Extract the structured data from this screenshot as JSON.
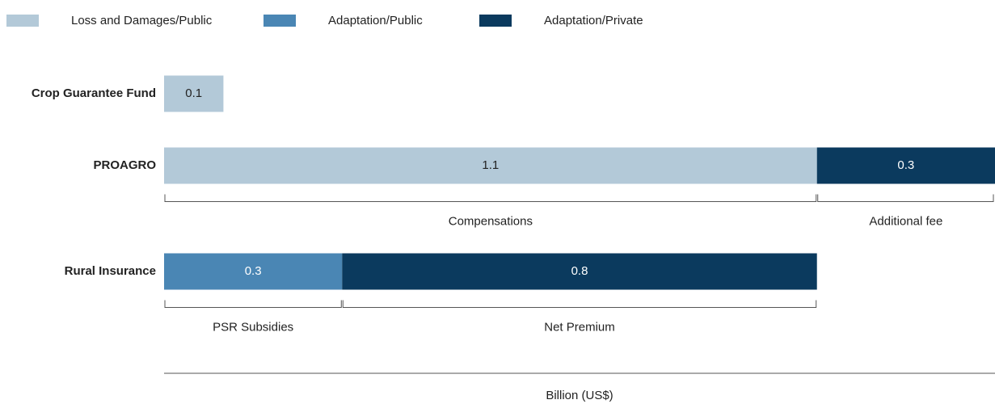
{
  "chart_data": {
    "type": "stacked_barh",
    "categories": [
      "Crop Guarantee Fund",
      "PROAGRO",
      "Rural Insurance"
    ],
    "series": [
      {
        "name": "Loss and Damages/Public",
        "color": "#b3c9d8",
        "values": [
          0.1,
          1.1,
          null
        ],
        "segment_labels": [
          null,
          "Compensations",
          null
        ]
      },
      {
        "name": "Adaptation/Public",
        "color": "#4a86b4",
        "values": [
          null,
          null,
          0.3
        ],
        "segment_labels": [
          null,
          null,
          "PSR Subsidies"
        ]
      },
      {
        "name": "Adaptation/Private",
        "color": "#0b3a5e",
        "values": [
          null,
          0.3,
          0.8
        ],
        "segment_labels": [
          null,
          "Additional fee",
          "Net Premium"
        ]
      }
    ],
    "xlabel": "Billion (US$)",
    "xlim": [
      0,
      1.4
    ],
    "legend": "top"
  }
}
